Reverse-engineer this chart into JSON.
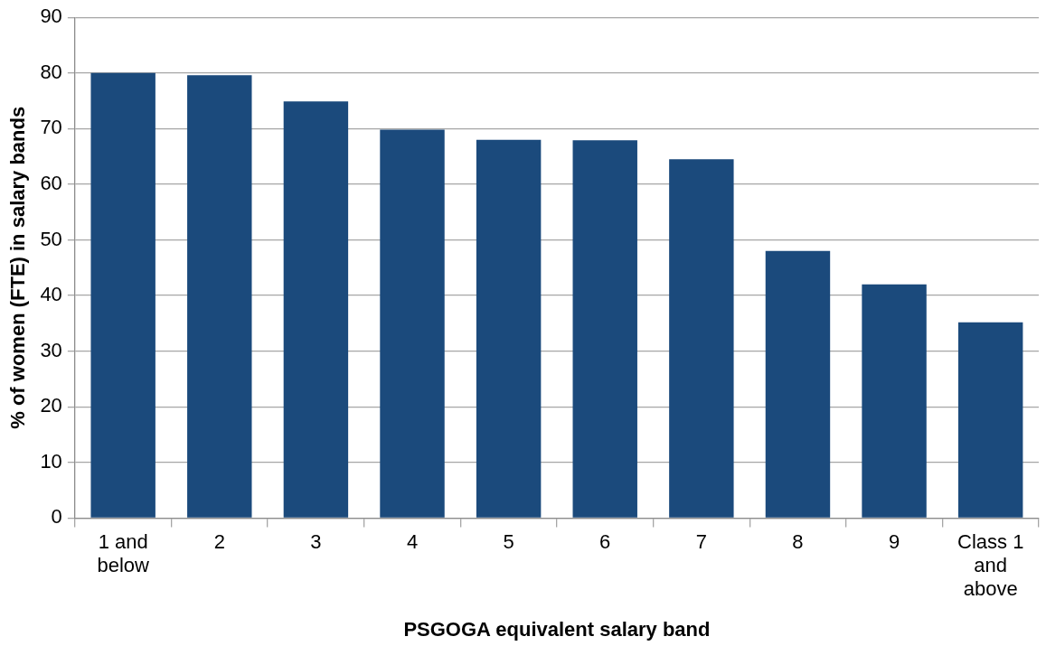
{
  "chart_data": {
    "type": "bar",
    "xlabel": "PSGOGA equivalent salary band",
    "ylabel": "% of women (FTE) in salary bands",
    "categories": [
      "1 and below",
      "2",
      "3",
      "4",
      "5",
      "6",
      "7",
      "8",
      "9",
      "Class 1 and above"
    ],
    "values": [
      80,
      79.6,
      74.9,
      69.8,
      68,
      67.9,
      64.5,
      48,
      42,
      35.2
    ],
    "color": "#1b4a7c",
    "ylim": [
      0,
      90
    ],
    "yticks": [
      0,
      10,
      20,
      30,
      40,
      50,
      60,
      70,
      80,
      90
    ],
    "grid": "y",
    "legend": false
  }
}
